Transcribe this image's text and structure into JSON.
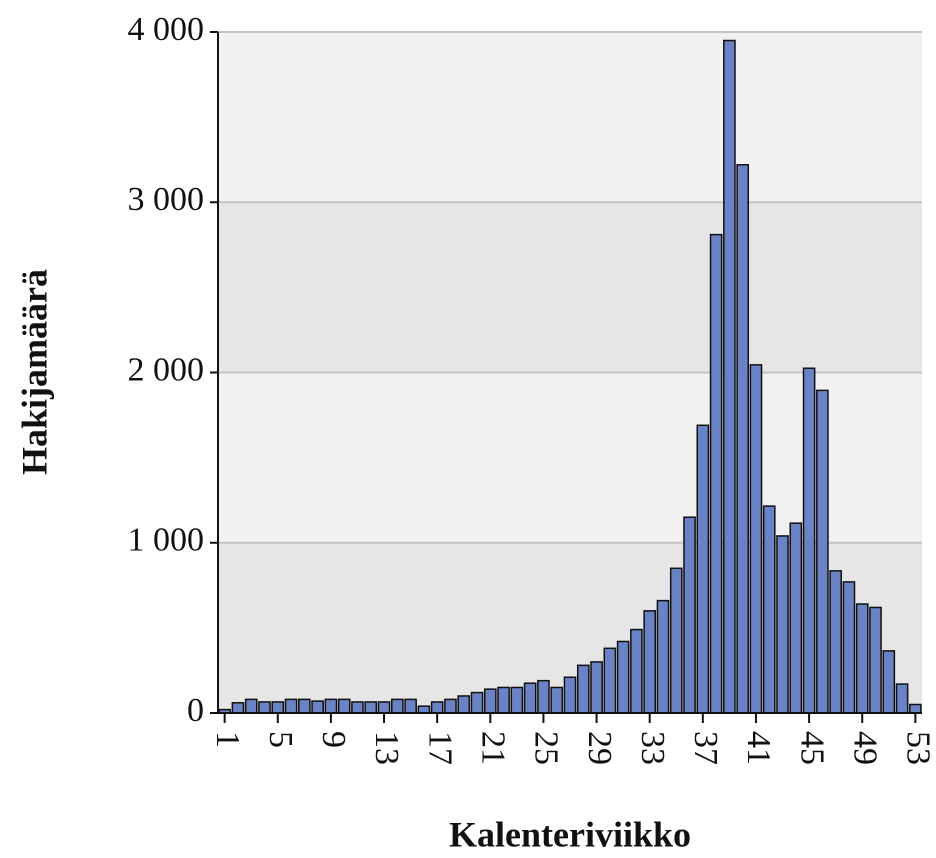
{
  "chart_data": {
    "type": "bar",
    "x_label": "Kalenteriviikko",
    "y_label": "Hakijamäärä",
    "categories": [
      1,
      null,
      null,
      null,
      5,
      null,
      null,
      null,
      9,
      null,
      null,
      null,
      13,
      null,
      null,
      null,
      17,
      null,
      null,
      null,
      21,
      null,
      null,
      null,
      25,
      null,
      null,
      null,
      29,
      null,
      null,
      null,
      33,
      null,
      null,
      null,
      37,
      null,
      null,
      null,
      41,
      null,
      null,
      null,
      45,
      null,
      null,
      null,
      49,
      null,
      null,
      null,
      53
    ],
    "values": [
      20,
      60,
      80,
      65,
      65,
      80,
      80,
      70,
      80,
      80,
      65,
      65,
      65,
      80,
      80,
      40,
      65,
      80,
      100,
      120,
      140,
      150,
      150,
      175,
      190,
      150,
      210,
      280,
      300,
      380,
      420,
      490,
      600,
      660,
      850,
      1150,
      1690,
      2810,
      3950,
      3220,
      2045,
      1215,
      1040,
      1115,
      2025,
      1895,
      835,
      770,
      640,
      620,
      365,
      170,
      50
    ],
    "color": "#6a82c6",
    "ylim": [
      0,
      4000
    ],
    "yticks": [
      0,
      {
        "value": 1000,
        "label": "1 000"
      },
      {
        "value": 2000,
        "label": "2 000"
      },
      {
        "value": 3000,
        "label": "3 000"
      },
      {
        "value": 4000,
        "label": "4 000"
      }
    ],
    "grid": true
  }
}
